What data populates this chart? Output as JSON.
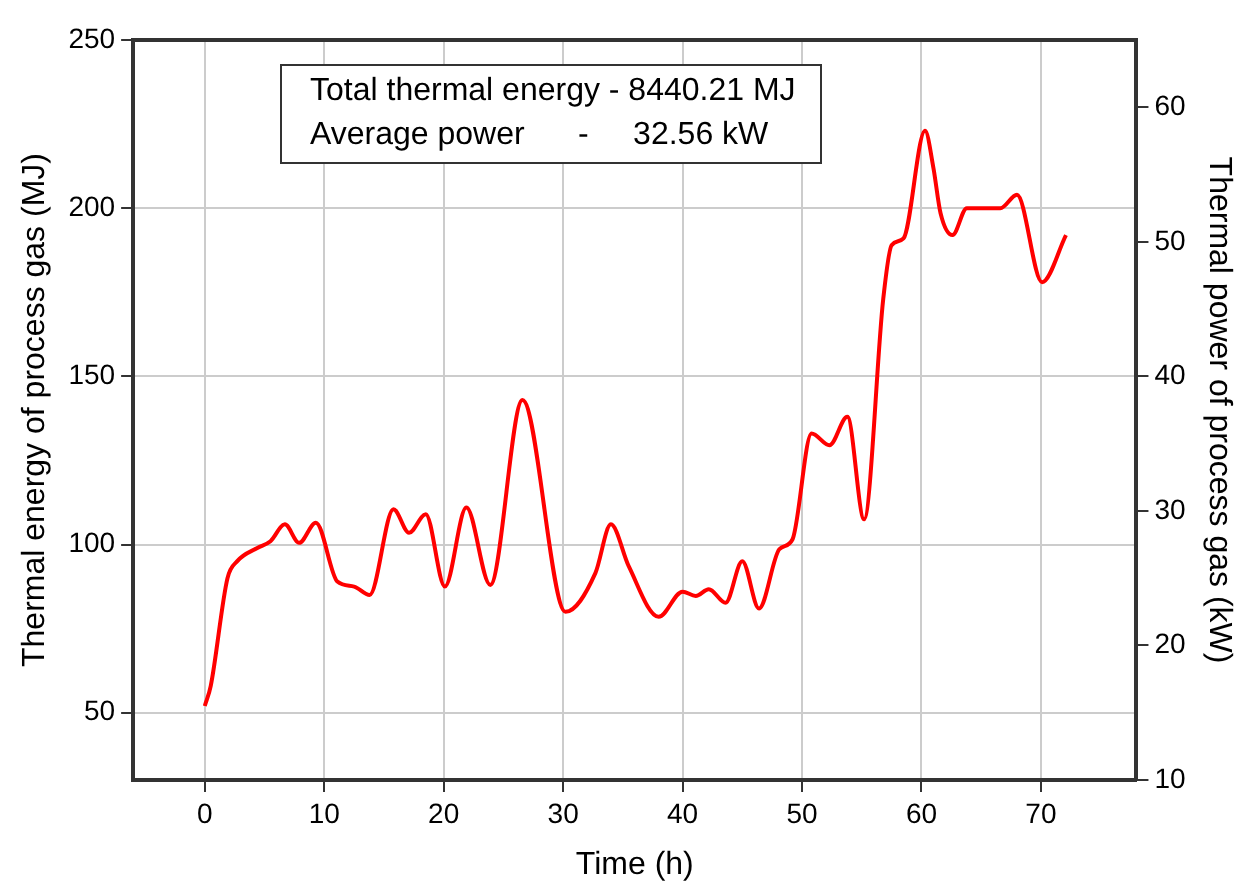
{
  "chart_data": {
    "type": "line",
    "xlabel": "Time (h)",
    "ylabel": "Thermal energy of process gas (MJ)",
    "y2label": "Thermal power of process gas (kW)",
    "annotations": [
      "Total thermal energy - 8440.21 MJ",
      "Average power      -     32.56 kW"
    ],
    "xlim": [
      -6,
      78
    ],
    "xticks": [
      0,
      10,
      20,
      30,
      40,
      50,
      60,
      70
    ],
    "ylim": [
      30,
      250
    ],
    "yticks": [
      50,
      100,
      150,
      200,
      250
    ],
    "y2lim": [
      10,
      65
    ],
    "y2ticks": [
      10,
      20,
      30,
      40,
      50,
      60
    ],
    "grid": true,
    "legend": false,
    "marker": "none",
    "line_style": "solid",
    "series": [
      {
        "color": "#ff0000",
        "x": [
          0,
          0.5,
          1.9,
          2.7,
          4.4,
          5.5,
          6.7,
          7.9,
          9.3,
          11.1,
          12.5,
          13.8,
          15.8,
          17.1,
          18.5,
          20.1,
          21.9,
          23.9,
          26.6,
          30.2,
          32.7,
          34,
          35.5,
          38,
          40,
          41.1,
          42.2,
          43.6,
          45,
          46.4,
          48.1,
          49.2,
          50.8,
          52.3,
          53.8,
          55.2,
          56.8,
          57.5,
          58.5,
          60.3,
          61,
          61.6,
          62.6,
          63.8,
          66.6,
          68,
          70.1,
          72.1
        ],
        "values": [
          52,
          58,
          90,
          95,
          99,
          101,
          106,
          100.5,
          106.5,
          89,
          87.5,
          85,
          110.5,
          103.5,
          109,
          87.5,
          111,
          88,
          143,
          80,
          91.5,
          106,
          93.5,
          78.5,
          86,
          84.7,
          86.7,
          82.7,
          95,
          81,
          98.6,
          101.5,
          133,
          129.5,
          138,
          107.5,
          173,
          189,
          191,
          223,
          212,
          198.5,
          192,
          200,
          200,
          204,
          178,
          192
        ]
      }
    ]
  }
}
